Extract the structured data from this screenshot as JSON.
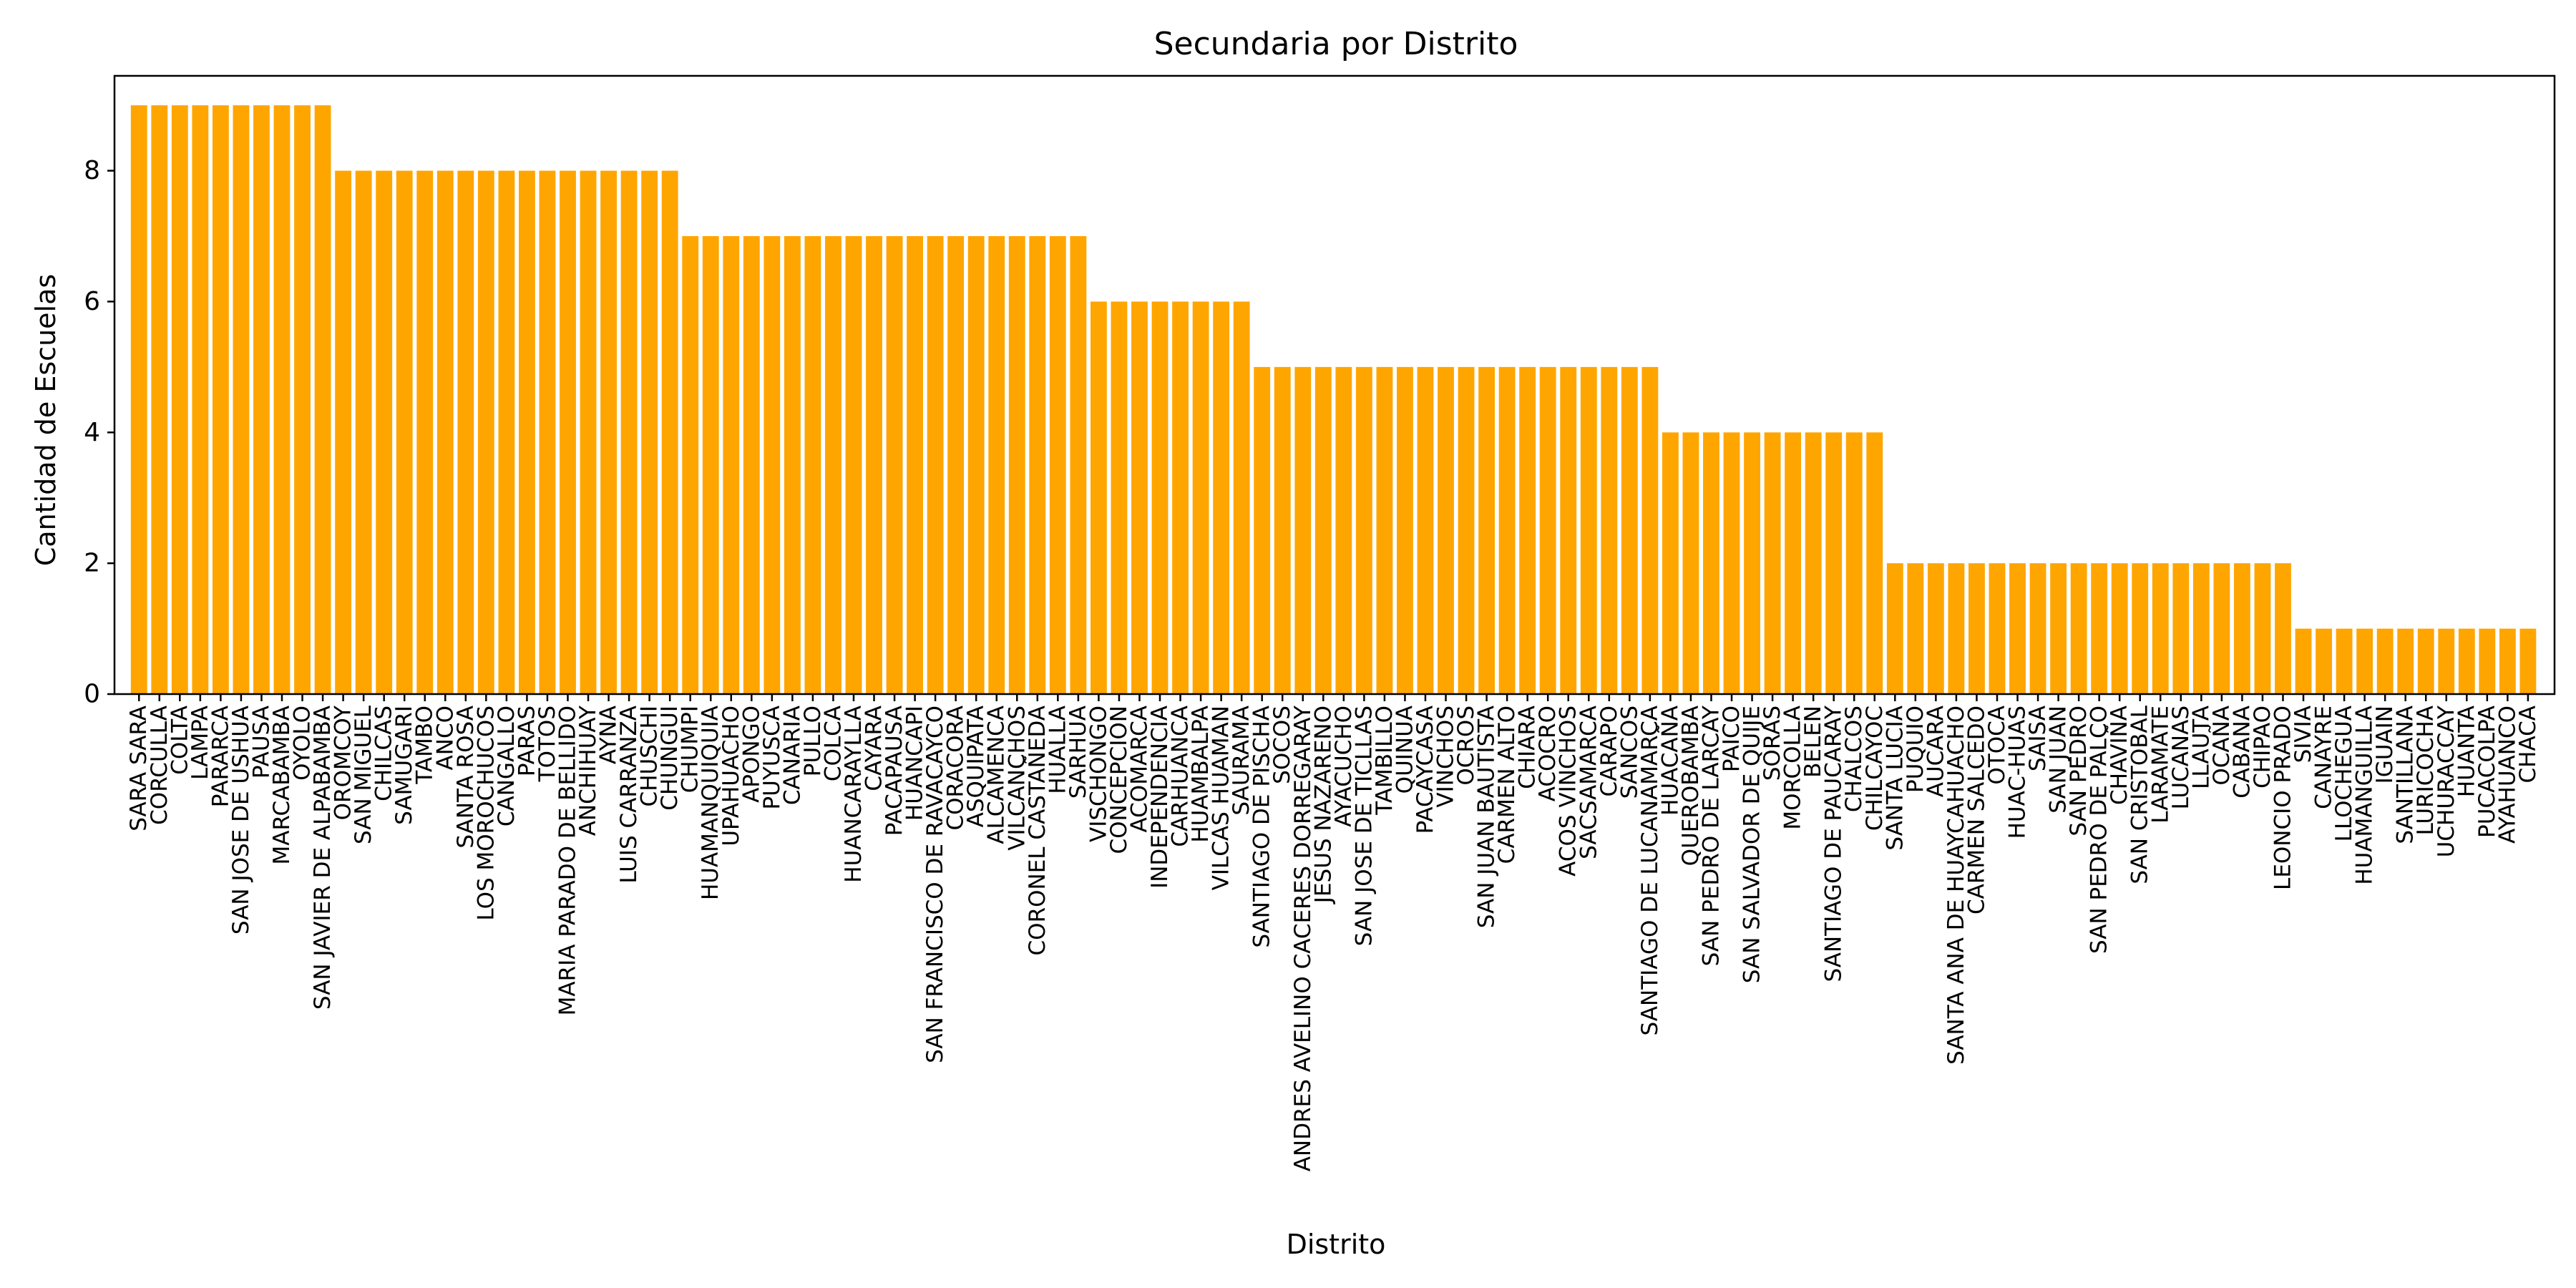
{
  "chart_data": {
    "type": "bar",
    "title": "Secundaria por Distrito",
    "xlabel": "Distrito",
    "ylabel": "Cantidad de Escuelas",
    "ylim": [
      0,
      9.45
    ],
    "yticks": [
      0,
      2,
      4,
      6,
      8
    ],
    "grid": false,
    "bar_color": "#FFA500",
    "categories": [
      "SARA SARA",
      "CORCULLA",
      "COLTA",
      "LAMPA",
      "PARARCA",
      "SAN JOSE DE USHUA",
      "PAUSA",
      "MARCABAMBA",
      "OYOLO",
      "SAN JAVIER DE ALPABAMBA",
      "OROMCOY",
      "SAN MIGUEL",
      "CHILCAS",
      "SAMUGARI",
      "TAMBO",
      "ANCO",
      "SANTA ROSA",
      "LOS MOROCHUCOS",
      "CANGALLO",
      "PARAS",
      "TOTOS",
      "MARIA PARADO DE BELLIDO",
      "ANCHIHUAY",
      "AYNA",
      "LUIS CARRANZA",
      "CHUSCHI",
      "CHUNGUI",
      "CHUMPI",
      "HUAMANQUIQUIA",
      "UPAHUACHO",
      "APONGO",
      "PUYUSCA",
      "CANARIA",
      "PULLO",
      "COLCA",
      "HUANCARAYLLA",
      "CAYARA",
      "PACAPAUSA",
      "HUANCAPI",
      "SAN FRANCISCO DE RAVACAYCO",
      "CORACORA",
      "ASQUIPATA",
      "ALCAMENCA",
      "VILCANCHOS",
      "CORONEL CASTAÑEDA",
      "HUALLA",
      "SARHUA",
      "VISCHONGO",
      "CONCEPCION",
      "ACOMARCA",
      "INDEPENDENCIA",
      "CARHUANCA",
      "HUAMBALPA",
      "VILCAS HUAMAN",
      "SAURAMA",
      "SANTIAGO DE PISCHA",
      "SOCOS",
      "ANDRES AVELINO CACERES DORREGARAY",
      "JESUS NAZARENO",
      "AYACUCHO",
      "SAN JOSE DE TICLLAS",
      "TAMBILLO",
      "QUINUA",
      "PACAYCASA",
      "VINCHOS",
      "OCROS",
      "SAN JUAN BAUTISTA",
      "CARMEN ALTO",
      "CHIARA",
      "ACOCRO",
      "ACOS VINCHOS",
      "SACSAMARCA",
      "CARAPO",
      "SANCOS",
      "SANTIAGO DE LUCANAMARCA",
      "HUACAÑA",
      "QUEROBAMBA",
      "SAN PEDRO DE LARCAY",
      "PAICO",
      "SAN SALVADOR DE QUIJE",
      "SORAS",
      "MORCOLLA",
      "BELEN",
      "SANTIAGO DE PAUCARAY",
      "CHALCOS",
      "CHILCAYOC",
      "SANTA LUCIA",
      "PUQUIO",
      "AUCARA",
      "SANTA ANA DE HUAYCAHUACHO",
      "CARMEN SALCEDO",
      "OTOCA",
      "HUAC-HUAS",
      "SAISA",
      "SAN JUAN",
      "SAN PEDRO",
      "SAN PEDRO DE PALCO",
      "CHAVIÑA",
      "SAN CRISTOBAL",
      "LARAMATE",
      "LUCANAS",
      "LLAUTA",
      "OCAÑA",
      "CABANA",
      "CHIPAO",
      "LEONCIO PRADO",
      "SIVIA",
      "CANAYRE",
      "LLOCHEGUA",
      "HUAMANGUILLA",
      "IGUAIN",
      "SANTILLANA",
      "LURICOCHA",
      "UCHURACCAY",
      "HUANTA",
      "PUCACOLPA",
      "AYAHUANCO",
      "CHACA"
    ],
    "values": [
      9,
      9,
      9,
      9,
      9,
      9,
      9,
      9,
      9,
      9,
      8,
      8,
      8,
      8,
      8,
      8,
      8,
      8,
      8,
      8,
      8,
      8,
      8,
      8,
      8,
      8,
      8,
      7,
      7,
      7,
      7,
      7,
      7,
      7,
      7,
      7,
      7,
      7,
      7,
      7,
      7,
      7,
      7,
      7,
      7,
      7,
      7,
      6,
      6,
      6,
      6,
      6,
      6,
      6,
      6,
      5,
      5,
      5,
      5,
      5,
      5,
      5,
      5,
      5,
      5,
      5,
      5,
      5,
      5,
      5,
      5,
      5,
      5,
      5,
      5,
      4,
      4,
      4,
      4,
      4,
      4,
      4,
      4,
      4,
      4,
      4,
      2,
      2,
      2,
      2,
      2,
      2,
      2,
      2,
      2,
      2,
      2,
      2,
      2,
      2,
      2,
      2,
      2,
      2,
      2,
      2,
      1,
      1,
      1,
      1,
      1,
      1,
      1,
      1,
      1,
      1,
      1,
      1
    ]
  }
}
